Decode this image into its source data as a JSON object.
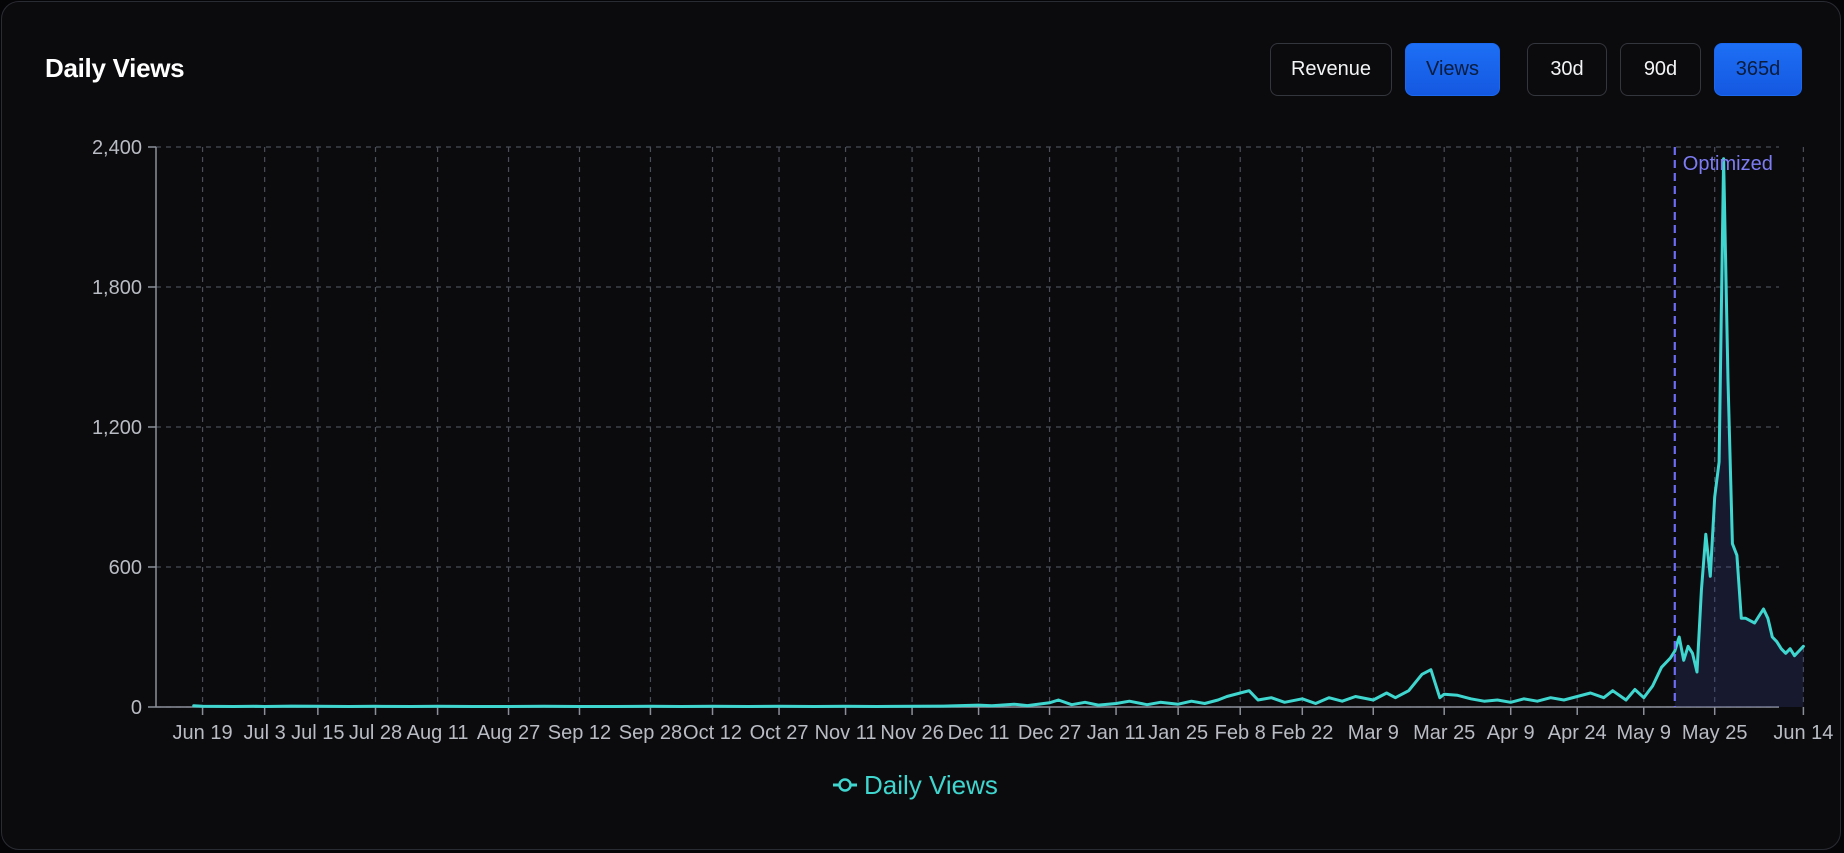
{
  "header": {
    "title": "Daily Views",
    "metric_tabs": [
      {
        "label": "Revenue",
        "active": false
      },
      {
        "label": "Views",
        "active": true
      }
    ],
    "range_tabs": [
      {
        "label": "30d",
        "active": false
      },
      {
        "label": "90d",
        "active": false
      },
      {
        "label": "365d",
        "active": true
      }
    ]
  },
  "colors": {
    "line": "#3fd6cf",
    "marker": "#6d6cf5",
    "accent": "#1d6ff5",
    "grid": "#4a4e59",
    "tick_text": "#b9bcc4"
  },
  "chart_data": {
    "type": "line",
    "title": "Daily Views",
    "xlabel": "",
    "ylabel": "",
    "ylim": [
      0,
      2400
    ],
    "yticks": [
      0,
      600,
      1200,
      1800,
      2400
    ],
    "yticklabels": [
      "0",
      "600",
      "1,200",
      "1,800",
      "2,400"
    ],
    "xticklabels": [
      "Jun 19",
      "Jul 3",
      "Jul 15",
      "Jul 28",
      "Aug 11",
      "Aug 27",
      "Sep 12",
      "Sep 28",
      "Oct 12",
      "Oct 27",
      "Nov 11",
      "Nov 26",
      "Dec 11",
      "Dec 27",
      "Jan 11",
      "Jan 25",
      "Feb 8",
      "Feb 22",
      "Mar 9",
      "Mar 25",
      "Apr 9",
      "Apr 24",
      "May 9",
      "May 25",
      "Jun 14"
    ],
    "grid": true,
    "legend": "bottom-center",
    "annotation": {
      "label": "Optimized",
      "date": "May 16"
    },
    "series": [
      {
        "name": "Daily Views",
        "points": [
          [
            "Jun 17",
            5
          ],
          [
            "Jun 19",
            3
          ],
          [
            "Jun 26",
            2
          ],
          [
            "Jul 1",
            3
          ],
          [
            "Jul 3",
            2
          ],
          [
            "Jul 9",
            4
          ],
          [
            "Jul 15",
            3
          ],
          [
            "Jul 22",
            2
          ],
          [
            "Jul 28",
            3
          ],
          [
            "Aug 5",
            2
          ],
          [
            "Aug 11",
            3
          ],
          [
            "Aug 19",
            2
          ],
          [
            "Aug 27",
            2
          ],
          [
            "Sep 4",
            3
          ],
          [
            "Sep 12",
            2
          ],
          [
            "Sep 20",
            2
          ],
          [
            "Sep 28",
            3
          ],
          [
            "Oct 5",
            2
          ],
          [
            "Oct 12",
            3
          ],
          [
            "Oct 20",
            2
          ],
          [
            "Oct 27",
            3
          ],
          [
            "Nov 4",
            2
          ],
          [
            "Nov 11",
            3
          ],
          [
            "Nov 18",
            2
          ],
          [
            "Nov 26",
            3
          ],
          [
            "Dec 3",
            4
          ],
          [
            "Dec 11",
            8
          ],
          [
            "Dec 14",
            5
          ],
          [
            "Dec 19",
            12
          ],
          [
            "Dec 22",
            6
          ],
          [
            "Dec 27",
            18
          ],
          [
            "Dec 29",
            30
          ],
          [
            "Jan 1",
            10
          ],
          [
            "Jan 4",
            20
          ],
          [
            "Jan 7",
            8
          ],
          [
            "Jan 11",
            15
          ],
          [
            "Jan 14",
            25
          ],
          [
            "Jan 18",
            10
          ],
          [
            "Jan 21",
            20
          ],
          [
            "Jan 25",
            12
          ],
          [
            "Jan 28",
            25
          ],
          [
            "Jan 31",
            15
          ],
          [
            "Feb 3",
            30
          ],
          [
            "Feb 5",
            45
          ],
          [
            "Feb 8",
            60
          ],
          [
            "Feb 10",
            70
          ],
          [
            "Feb 12",
            30
          ],
          [
            "Feb 15",
            40
          ],
          [
            "Feb 18",
            20
          ],
          [
            "Feb 22",
            35
          ],
          [
            "Feb 25",
            15
          ],
          [
            "Feb 28",
            40
          ],
          [
            "Mar 2",
            25
          ],
          [
            "Mar 5",
            45
          ],
          [
            "Mar 9",
            30
          ],
          [
            "Mar 12",
            60
          ],
          [
            "Mar 14",
            40
          ],
          [
            "Mar 17",
            70
          ],
          [
            "Mar 20",
            140
          ],
          [
            "Mar 22",
            160
          ],
          [
            "Mar 24",
            40
          ],
          [
            "Mar 25",
            55
          ],
          [
            "Mar 28",
            50
          ],
          [
            "Mar 31",
            35
          ],
          [
            "Apr 3",
            25
          ],
          [
            "Apr 6",
            30
          ],
          [
            "Apr 9",
            20
          ],
          [
            "Apr 12",
            35
          ],
          [
            "Apr 15",
            25
          ],
          [
            "Apr 18",
            40
          ],
          [
            "Apr 21",
            30
          ],
          [
            "Apr 24",
            45
          ],
          [
            "Apr 27",
            60
          ],
          [
            "Apr 30",
            40
          ],
          [
            "May 2",
            70
          ],
          [
            "May 5",
            30
          ],
          [
            "May 7",
            75
          ],
          [
            "May 9",
            40
          ],
          [
            "May 11",
            90
          ],
          [
            "May 13",
            170
          ],
          [
            "May 15",
            210
          ],
          [
            "May 16",
            240
          ],
          [
            "May 17",
            300
          ],
          [
            "May 18",
            200
          ],
          [
            "May 19",
            260
          ],
          [
            "May 20",
            230
          ],
          [
            "May 21",
            150
          ],
          [
            "May 22",
            500
          ],
          [
            "May 23",
            740
          ],
          [
            "May 24",
            560
          ],
          [
            "May 25",
            900
          ],
          [
            "May 26",
            1050
          ],
          [
            "May 27",
            2350
          ],
          [
            "May 28",
            1400
          ],
          [
            "May 29",
            700
          ],
          [
            "May 30",
            650
          ],
          [
            "May 31",
            380
          ],
          [
            "Jun 1",
            380
          ],
          [
            "Jun 2",
            370
          ],
          [
            "Jun 3",
            360
          ],
          [
            "Jun 4",
            390
          ],
          [
            "Jun 5",
            420
          ],
          [
            "Jun 6",
            380
          ],
          [
            "Jun 7",
            300
          ],
          [
            "Jun 8",
            280
          ],
          [
            "Jun 9",
            250
          ],
          [
            "Jun 10",
            230
          ],
          [
            "Jun 11",
            250
          ],
          [
            "Jun 12",
            220
          ],
          [
            "Jun 13",
            240
          ],
          [
            "Jun 14",
            260
          ]
        ]
      }
    ]
  }
}
